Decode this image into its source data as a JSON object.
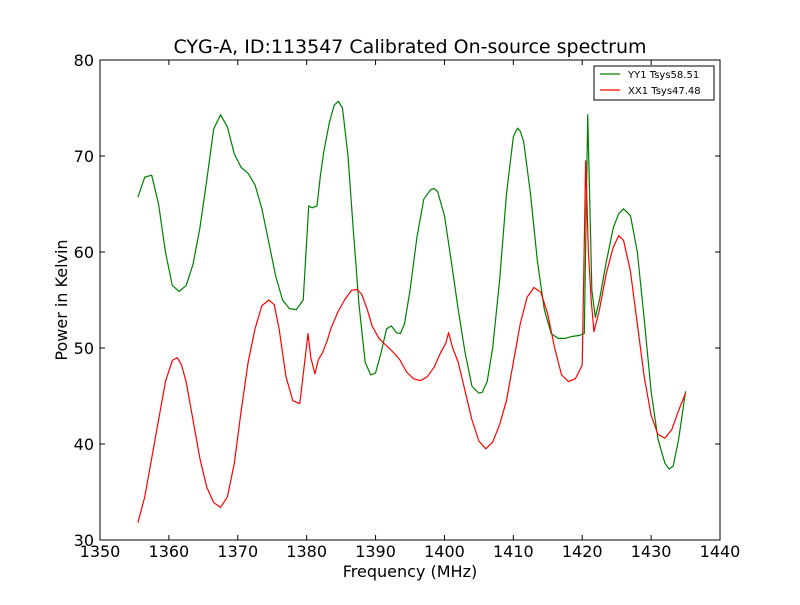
{
  "chart_data": {
    "type": "line",
    "title": "CYG-A, ID:113547 Calibrated On-source spectrum",
    "xlabel": "Frequency (MHz)",
    "ylabel": "Power in Kelvin",
    "xlim": [
      1350,
      1440
    ],
    "ylim": [
      30,
      80
    ],
    "xticks": [
      1350,
      1360,
      1370,
      1380,
      1390,
      1400,
      1410,
      1420,
      1430,
      1440
    ],
    "yticks": [
      30,
      40,
      50,
      60,
      70,
      80
    ],
    "grid": false,
    "legend": "top-right",
    "series": [
      {
        "name": "YY1 Tsys58.51",
        "color": "#008000",
        "x": [
          1355.5,
          1356.5,
          1357.5,
          1358.5,
          1359.5,
          1360.5,
          1361.5,
          1362.5,
          1363.5,
          1364.5,
          1365.5,
          1366.5,
          1367.5,
          1368.5,
          1369.5,
          1370.5,
          1371.5,
          1372.5,
          1373.5,
          1374.5,
          1375.5,
          1376.5,
          1377.5,
          1378.5,
          1379.5,
          1380.3,
          1380.8,
          1381.5,
          1382.0,
          1382.5,
          1383.3,
          1384.0,
          1384.6,
          1385.2,
          1386.0,
          1386.8,
          1387.6,
          1388.5,
          1389.3,
          1390.0,
          1390.8,
          1391.6,
          1392.3,
          1393.0,
          1393.6,
          1394.2,
          1395.0,
          1396.0,
          1397.0,
          1398.0,
          1398.5,
          1399.0,
          1400.0,
          1401.0,
          1402.0,
          1403.0,
          1404.0,
          1405.0,
          1405.5,
          1406.2,
          1407.0,
          1408.0,
          1409.0,
          1410.0,
          1410.6,
          1411.0,
          1411.5,
          1412.5,
          1413.5,
          1414.5,
          1415.5,
          1416.5,
          1417.5,
          1418.5,
          1419.5,
          1420.3,
          1420.8,
          1421.4,
          1421.9,
          1422.5,
          1423.5,
          1424.5,
          1425.3,
          1426.0,
          1427.0,
          1428.0,
          1429.0,
          1430.0,
          1431.0,
          1432.0,
          1432.6,
          1433.2,
          1434.0,
          1435.0
        ],
        "values": [
          65.7,
          67.8,
          68.0,
          65.0,
          60.0,
          56.5,
          55.9,
          56.5,
          58.7,
          62.5,
          67.5,
          72.8,
          74.3,
          73.0,
          70.2,
          68.8,
          68.2,
          67.0,
          64.5,
          61.0,
          57.5,
          55.0,
          54.1,
          54.0,
          55.0,
          64.8,
          64.6,
          64.8,
          68.0,
          70.5,
          73.5,
          75.3,
          75.7,
          75.0,
          70.0,
          62.0,
          54.5,
          48.5,
          47.2,
          47.4,
          49.5,
          52.0,
          52.3,
          51.6,
          51.5,
          52.5,
          56.0,
          61.5,
          65.5,
          66.5,
          66.6,
          66.3,
          63.8,
          59.0,
          54.0,
          49.5,
          46.0,
          45.3,
          45.4,
          46.5,
          50.0,
          57.0,
          66.0,
          72.0,
          72.9,
          72.6,
          71.5,
          66.0,
          59.0,
          54.0,
          51.5,
          51.0,
          51.0,
          51.2,
          51.3,
          51.5,
          74.3,
          56.0,
          53.2,
          55.0,
          59.0,
          62.5,
          64.0,
          64.5,
          63.8,
          60.0,
          53.0,
          45.5,
          40.5,
          38.0,
          37.4,
          37.7,
          40.5,
          45.5
        ]
      },
      {
        "name": "XX1 Tsys47.48",
        "color": "#ff0000",
        "x": [
          1355.5,
          1356.5,
          1357.5,
          1358.5,
          1359.5,
          1360.5,
          1361.2,
          1361.8,
          1362.5,
          1363.5,
          1364.5,
          1365.5,
          1366.5,
          1367.5,
          1368.5,
          1369.5,
          1370.5,
          1371.5,
          1372.5,
          1373.5,
          1374.5,
          1375.3,
          1376.0,
          1377.0,
          1378.0,
          1379.0,
          1380.2,
          1380.6,
          1381.2,
          1381.7,
          1382.3,
          1383.0,
          1383.5,
          1384.5,
          1385.5,
          1386.5,
          1387.3,
          1388.0,
          1388.8,
          1389.5,
          1390.5,
          1391.5,
          1392.5,
          1393.5,
          1394.5,
          1395.5,
          1396.5,
          1397.5,
          1398.5,
          1399.5,
          1400.2,
          1400.6,
          1401.2,
          1402.0,
          1403.0,
          1404.0,
          1405.0,
          1406.0,
          1407.0,
          1408.0,
          1409.0,
          1410.0,
          1411.0,
          1412.0,
          1413.0,
          1414.0,
          1415.0,
          1416.0,
          1417.0,
          1418.0,
          1419.0,
          1420.0,
          1420.5,
          1420.9,
          1421.3,
          1421.7,
          1422.5,
          1423.5,
          1424.5,
          1425.3,
          1426.0,
          1427.0,
          1428.0,
          1429.0,
          1430.0,
          1431.0,
          1432.0,
          1433.0,
          1434.0,
          1435.0
        ],
        "values": [
          31.8,
          34.5,
          38.5,
          42.5,
          46.5,
          48.7,
          49.0,
          48.3,
          46.5,
          42.5,
          38.5,
          35.5,
          33.9,
          33.4,
          34.5,
          38.0,
          43.5,
          48.5,
          52.0,
          54.4,
          55.0,
          54.5,
          52.0,
          47.0,
          44.5,
          44.2,
          51.5,
          49.0,
          47.3,
          48.8,
          49.5,
          50.8,
          52.0,
          53.7,
          55.0,
          56.0,
          56.1,
          55.6,
          54.0,
          52.3,
          51.0,
          50.3,
          49.6,
          48.8,
          47.5,
          46.8,
          46.6,
          47.0,
          48.0,
          49.6,
          50.5,
          51.6,
          50.0,
          48.5,
          45.5,
          42.5,
          40.3,
          39.5,
          40.2,
          42.0,
          44.5,
          48.5,
          52.5,
          55.3,
          56.3,
          55.8,
          53.5,
          50.0,
          47.2,
          46.5,
          46.8,
          48.2,
          69.5,
          60.0,
          55.0,
          51.7,
          54.0,
          57.8,
          60.5,
          61.7,
          61.2,
          58.0,
          52.5,
          47.0,
          43.0,
          41.0,
          40.6,
          41.5,
          43.5,
          45.3
        ]
      }
    ]
  }
}
